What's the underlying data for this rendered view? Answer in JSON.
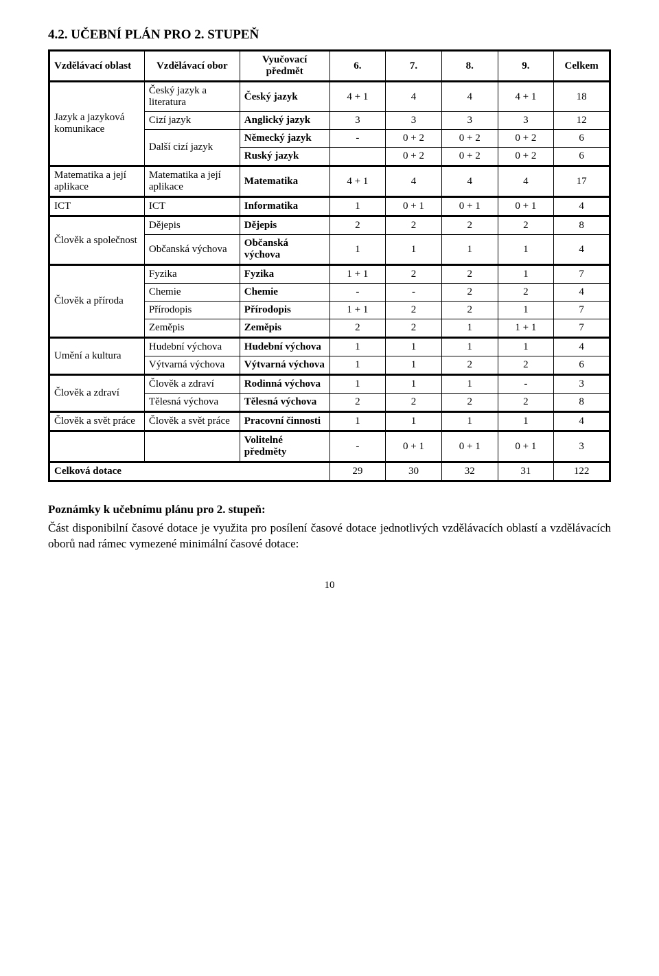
{
  "section_title": "4.2. UČEBNÍ PLÁN PRO 2. STUPEŇ",
  "header": {
    "area": "Vzdělávací oblast",
    "field": "Vzdělávací obor",
    "subject": "Vyučovací předmět",
    "grades": [
      "6.",
      "7.",
      "8.",
      "9."
    ],
    "total": "Celkem"
  },
  "rows": {
    "jazyk_area": "Jazyk a jazyková komunikace",
    "cesky_lit": "Český jazyk a literatura",
    "cesky_subj": "Český jazyk",
    "cesky_vals": [
      "4 + 1",
      "4",
      "4",
      "4 + 1",
      "18"
    ],
    "cizi_field": "Cizí jazyk",
    "ang_subj": "Anglický jazyk",
    "ang_vals": [
      "3",
      "3",
      "3",
      "3",
      "12"
    ],
    "dalsi_field": "Další cizí jazyk",
    "nem_subj": "Německý jazyk",
    "nem_vals": [
      "-",
      "0 + 2",
      "0 + 2",
      "0 + 2",
      "6"
    ],
    "rus_subj": "Ruský jazyk",
    "rus_vals": [
      "",
      "0 + 2",
      "0 + 2",
      "0 + 2",
      "6"
    ],
    "mat_area": "Matematika a její aplikace",
    "mat_field": "Matematika a její aplikace",
    "mat_subj": "Matematika",
    "mat_vals": [
      "4 + 1",
      "4",
      "4",
      "4",
      "17"
    ],
    "ict_area": "ICT",
    "ict_field": "ICT",
    "ict_subj": "Informatika",
    "ict_vals": [
      "1",
      "0 + 1",
      "0 + 1",
      "0 + 1",
      "4"
    ],
    "spol_area": "Člověk a společnost",
    "dej_field": "Dějepis",
    "dej_subj": "Dějepis",
    "dej_vals": [
      "2",
      "2",
      "2",
      "2",
      "8"
    ],
    "obc_field": "Občanská výchova",
    "obc_subj": "Občanská výchova",
    "obc_vals": [
      "1",
      "1",
      "1",
      "1",
      "4"
    ],
    "prir_area": "Člověk a příroda",
    "fyz_field": "Fyzika",
    "fyz_subj": "Fyzika",
    "fyz_vals": [
      "1 + 1",
      "2",
      "2",
      "1",
      "7"
    ],
    "chem_field": "Chemie",
    "chem_subj": "Chemie",
    "chem_vals": [
      "-",
      "-",
      "2",
      "2",
      "4"
    ],
    "prd_field": "Přírodopis",
    "prd_subj": "Přírodopis",
    "prd_vals": [
      "1 + 1",
      "2",
      "2",
      "1",
      "7"
    ],
    "zem_field": "Zeměpis",
    "zem_subj": "Zeměpis",
    "zem_vals": [
      "2",
      "2",
      "1",
      "1 + 1",
      "7"
    ],
    "umeni_area": "Umění a kultura",
    "hud_field": "Hudební výchova",
    "hud_subj": "Hudební výchova",
    "hud_vals": [
      "1",
      "1",
      "1",
      "1",
      "4"
    ],
    "vyt_field": "Výtvarná výchova",
    "vyt_subj": "Výtvarná výchova",
    "vyt_vals": [
      "1",
      "1",
      "2",
      "2",
      "6"
    ],
    "zdravi_area": "Člověk a zdraví",
    "zdr_field": "Člověk a zdraví",
    "rod_subj": "Rodinná výchova",
    "rod_vals": [
      "1",
      "1",
      "1",
      "-",
      "3"
    ],
    "tel_field": "Tělesná výchova",
    "tel_subj": "Tělesná výchova",
    "tel_vals": [
      "2",
      "2",
      "2",
      "2",
      "8"
    ],
    "prace_area": "Člověk a svět práce",
    "prace_field": "Člověk a svět práce",
    "prac_subj": "Pracovní činnosti",
    "prac_vals": [
      "1",
      "1",
      "1",
      "1",
      "4"
    ],
    "vol_subj": "Volitelné předměty",
    "vol_vals": [
      "-",
      "0 + 1",
      "0 + 1",
      "0 + 1",
      "3"
    ],
    "total_label": "Celková dotace",
    "total_vals": [
      "29",
      "30",
      "32",
      "31",
      "122"
    ]
  },
  "notes": {
    "title": "Poznámky k učebnímu plánu pro 2. stupeň:",
    "body": "Část disponibilní časové dotace je využita pro posílení časové dotace jednotlivých vzdělávacích oblastí a vzdělávacích oborů nad rámec vymezené minimální časové dotace:"
  },
  "page_number": "10"
}
